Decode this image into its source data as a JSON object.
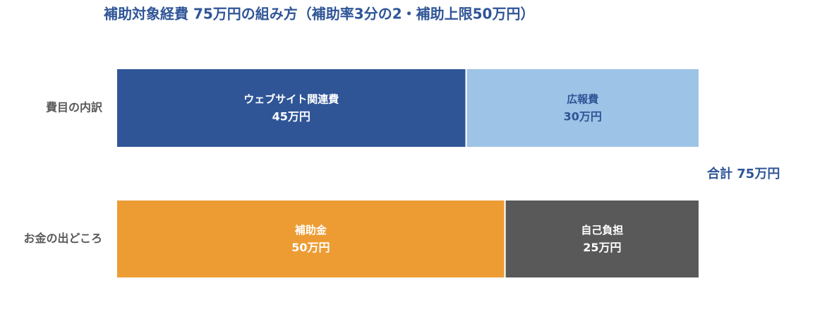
{
  "chart_data": {
    "type": "stacked-bar-horizontal",
    "title": "補助対象経費 75万円の組み方（補助率3分の2・補助上限50万円）",
    "categories": [
      "費目の内訳",
      "お金の出どころ"
    ],
    "series": [
      {
        "name": "ウェブサイト関連費",
        "color": "#2f5597",
        "label_color": "#ffffff",
        "values": [
          45,
          null
        ],
        "value_labels": [
          "45万円",
          null
        ]
      },
      {
        "name": "広報費",
        "color": "#9dc3e6",
        "label_color": "#2f5597",
        "values": [
          30,
          null
        ],
        "value_labels": [
          "30万円",
          null
        ]
      },
      {
        "name": "補助金",
        "color": "#ed9c34",
        "label_color": "#ffffff",
        "values": [
          null,
          50
        ],
        "value_labels": [
          null,
          "50万円"
        ]
      },
      {
        "name": "自己負担",
        "color": "#595959",
        "label_color": "#ffffff",
        "values": [
          null,
          25
        ],
        "value_labels": [
          null,
          "25万円"
        ]
      }
    ],
    "annotation": "合計 75万円"
  }
}
